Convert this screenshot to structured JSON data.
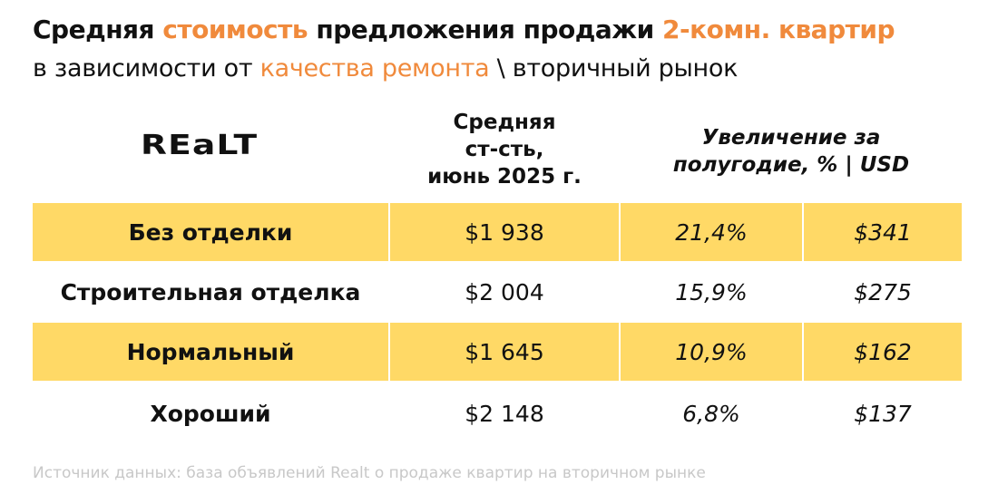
{
  "title": {
    "p1": "Средняя ",
    "p2": "стоимость",
    "p3": " предложения продажи ",
    "p4": "2-комн. квартир"
  },
  "subtitle": {
    "p1": "в зависимости от ",
    "p2": "качества ремонта",
    "p3": " \\ вторичный рынок"
  },
  "logo": "Realt",
  "colors": {
    "accent": "#F08A3C",
    "highlight_row": "#FFD966"
  },
  "chart_data": {
    "type": "table",
    "columns": [
      "Средняя ст-сть, июнь 2025 г.",
      "Увеличение за полугодие, % | USD"
    ],
    "header": {
      "col1": [
        "Средняя",
        "ст-сть,",
        "июнь 2025 г."
      ],
      "col2": [
        "Увеличение за",
        "полугодие, % | USD"
      ]
    },
    "rows": [
      {
        "label": "Без отделки",
        "price": "$1 938",
        "pct": "21,4%",
        "usd": "$341",
        "highlight": true
      },
      {
        "label": "Строительная отделка",
        "price": "$2 004",
        "pct": "15,9%",
        "usd": "$275",
        "highlight": false
      },
      {
        "label": "Нормальный",
        "price": "$1 645",
        "pct": "10,9%",
        "usd": "$162",
        "highlight": true
      },
      {
        "label": "Хороший",
        "price": "$2 148",
        "pct": "6,8%",
        "usd": "$137",
        "highlight": false
      }
    ]
  },
  "source": "Источник данных: база объявлений Realt о продаже квартир на вторичном рынке"
}
